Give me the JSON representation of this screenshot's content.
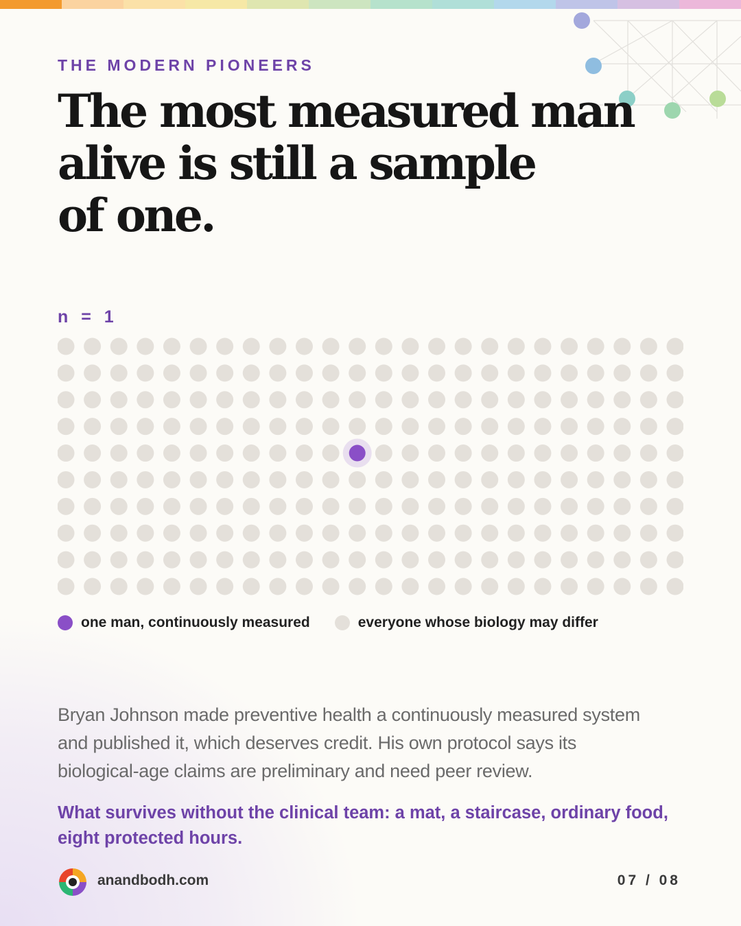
{
  "header": {
    "kicker": "THE MODERN PIONEERS",
    "title_lines": [
      "The most measured man",
      "alive is still a sample",
      "of one."
    ]
  },
  "dot_grid": {
    "label": "n = 1",
    "rows": 10,
    "columns": 24,
    "highlighted": {
      "row": 4,
      "column": 11
    },
    "highlight_color": "#8a4fc7",
    "base_color": "#e4e0da",
    "legend": [
      "one man, continuously measured",
      "everyone whose biology may differ"
    ]
  },
  "body": {
    "paragraph": "Bryan Johnson made preventive health a continuously measured system and published it, which deserves credit. His own protocol says its biological-age claims are preliminary and need peer review.",
    "emphasis": "What survives without the clinical team: a mat, a staircase, ordinary food, eight protected hours."
  },
  "footer": {
    "site": "anandbodh.com",
    "page": "07 / 08"
  }
}
